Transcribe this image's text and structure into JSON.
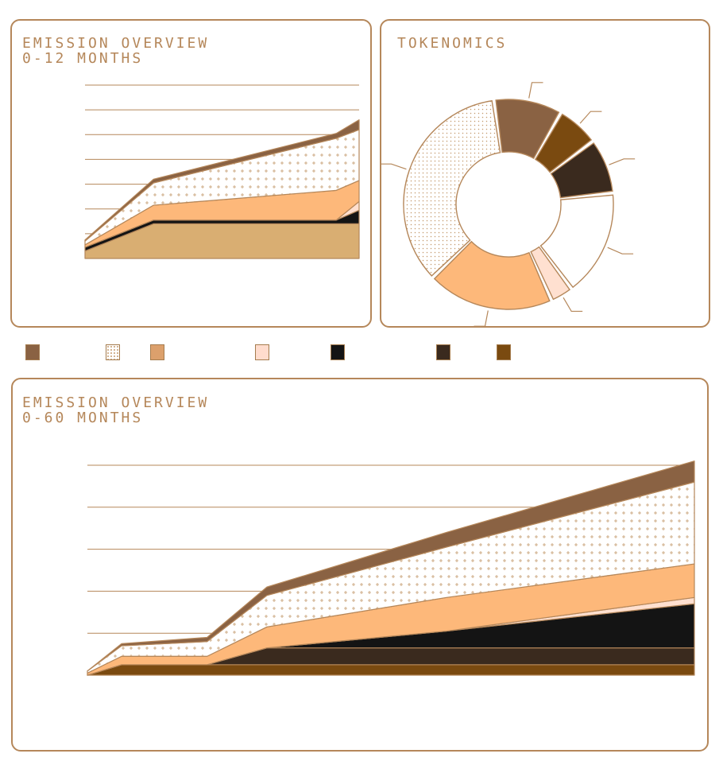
{
  "colors": {
    "border": "#b5875a",
    "gridline": "#b5875a",
    "s1": "#8a6243",
    "s2": "#ffffff",
    "s3": "#fdb87a",
    "s4": "#ffe0d0",
    "s5": "#141414",
    "s6": "#3a2a1e",
    "s7": "#7a4a10",
    "s8": "#d9ae72"
  },
  "legend_colors": [
    "#8a6243",
    "pattern-dots",
    "#dca06c",
    "#ffdccd",
    "#141414",
    "#3a2a1e",
    "#7a4a10"
  ],
  "charts": {
    "emission12": {
      "title_line1": "EMISSION OVERVIEW",
      "title_line2": "0-12 MONTHS"
    },
    "tokenomics": {
      "title": "TOKENOMICS"
    },
    "emission60": {
      "title_line1": "EMISSION OVERVIEW",
      "title_line2": "0-60 MONTHS"
    }
  },
  "chart_data": [
    {
      "type": "area",
      "stacked": true,
      "x": [
        0,
        3,
        11,
        12
      ],
      "ylim": [
        0,
        7
      ],
      "grid": true,
      "series": [
        {
          "color": "#d9ae72",
          "values": [
            0.3,
            1.4,
            1.4,
            1.4
          ]
        },
        {
          "color": "#141414",
          "values": [
            0.15,
            0.15,
            0.15,
            0.55
          ]
        },
        {
          "color": "#ffe0d0",
          "values": [
            0.0,
            0.0,
            0.0,
            0.35
          ]
        },
        {
          "color": "#fdb87a",
          "values": [
            0.1,
            0.6,
            1.2,
            0.85
          ]
        },
        {
          "color": "pattern-cross",
          "values": [
            0.15,
            0.9,
            2.1,
            2.05
          ]
        },
        {
          "color": "#8a6243",
          "values": [
            0.05,
            0.15,
            0.2,
            0.4
          ]
        }
      ]
    },
    {
      "type": "pie",
      "donut": true,
      "slices": [
        {
          "color": "#8a6243",
          "value": 10.5
        },
        {
          "color": "#7a4a10",
          "value": 6.5
        },
        {
          "color": "#3a2a1e",
          "value": 8.5
        },
        {
          "color": "#ffffff",
          "value": 16.5
        },
        {
          "color": "#ffe0d0",
          "value": 3.5
        },
        {
          "color": "#fdb87a",
          "value": 19.5
        },
        {
          "color": "pattern-dots",
          "value": 35.0
        }
      ]
    },
    {
      "type": "area",
      "stacked": true,
      "x": [
        0,
        4,
        14,
        21,
        42,
        71
      ],
      "ylim": [
        0,
        5
      ],
      "grid": true,
      "series": [
        {
          "color": "#7a4a10",
          "values": [
            0.0,
            0.25,
            0.25,
            0.25,
            0.25,
            0.25
          ]
        },
        {
          "color": "#3a2a1e",
          "values": [
            0.0,
            0.0,
            0.0,
            0.4,
            0.4,
            0.4
          ]
        },
        {
          "color": "#141414",
          "values": [
            0.0,
            0.0,
            0.0,
            0.0,
            0.4,
            1.05
          ]
        },
        {
          "color": "#ffe0d0",
          "values": [
            0.0,
            0.0,
            0.0,
            0.0,
            0.0,
            0.15
          ]
        },
        {
          "color": "#fdb87a",
          "values": [
            0.05,
            0.2,
            0.2,
            0.5,
            0.8,
            0.8
          ]
        },
        {
          "color": "pattern-cross",
          "values": [
            0.05,
            0.25,
            0.35,
            0.75,
            1.2,
            1.95
          ]
        },
        {
          "color": "#8a6243",
          "values": [
            0.0,
            0.05,
            0.1,
            0.2,
            0.35,
            0.5
          ]
        }
      ]
    }
  ]
}
